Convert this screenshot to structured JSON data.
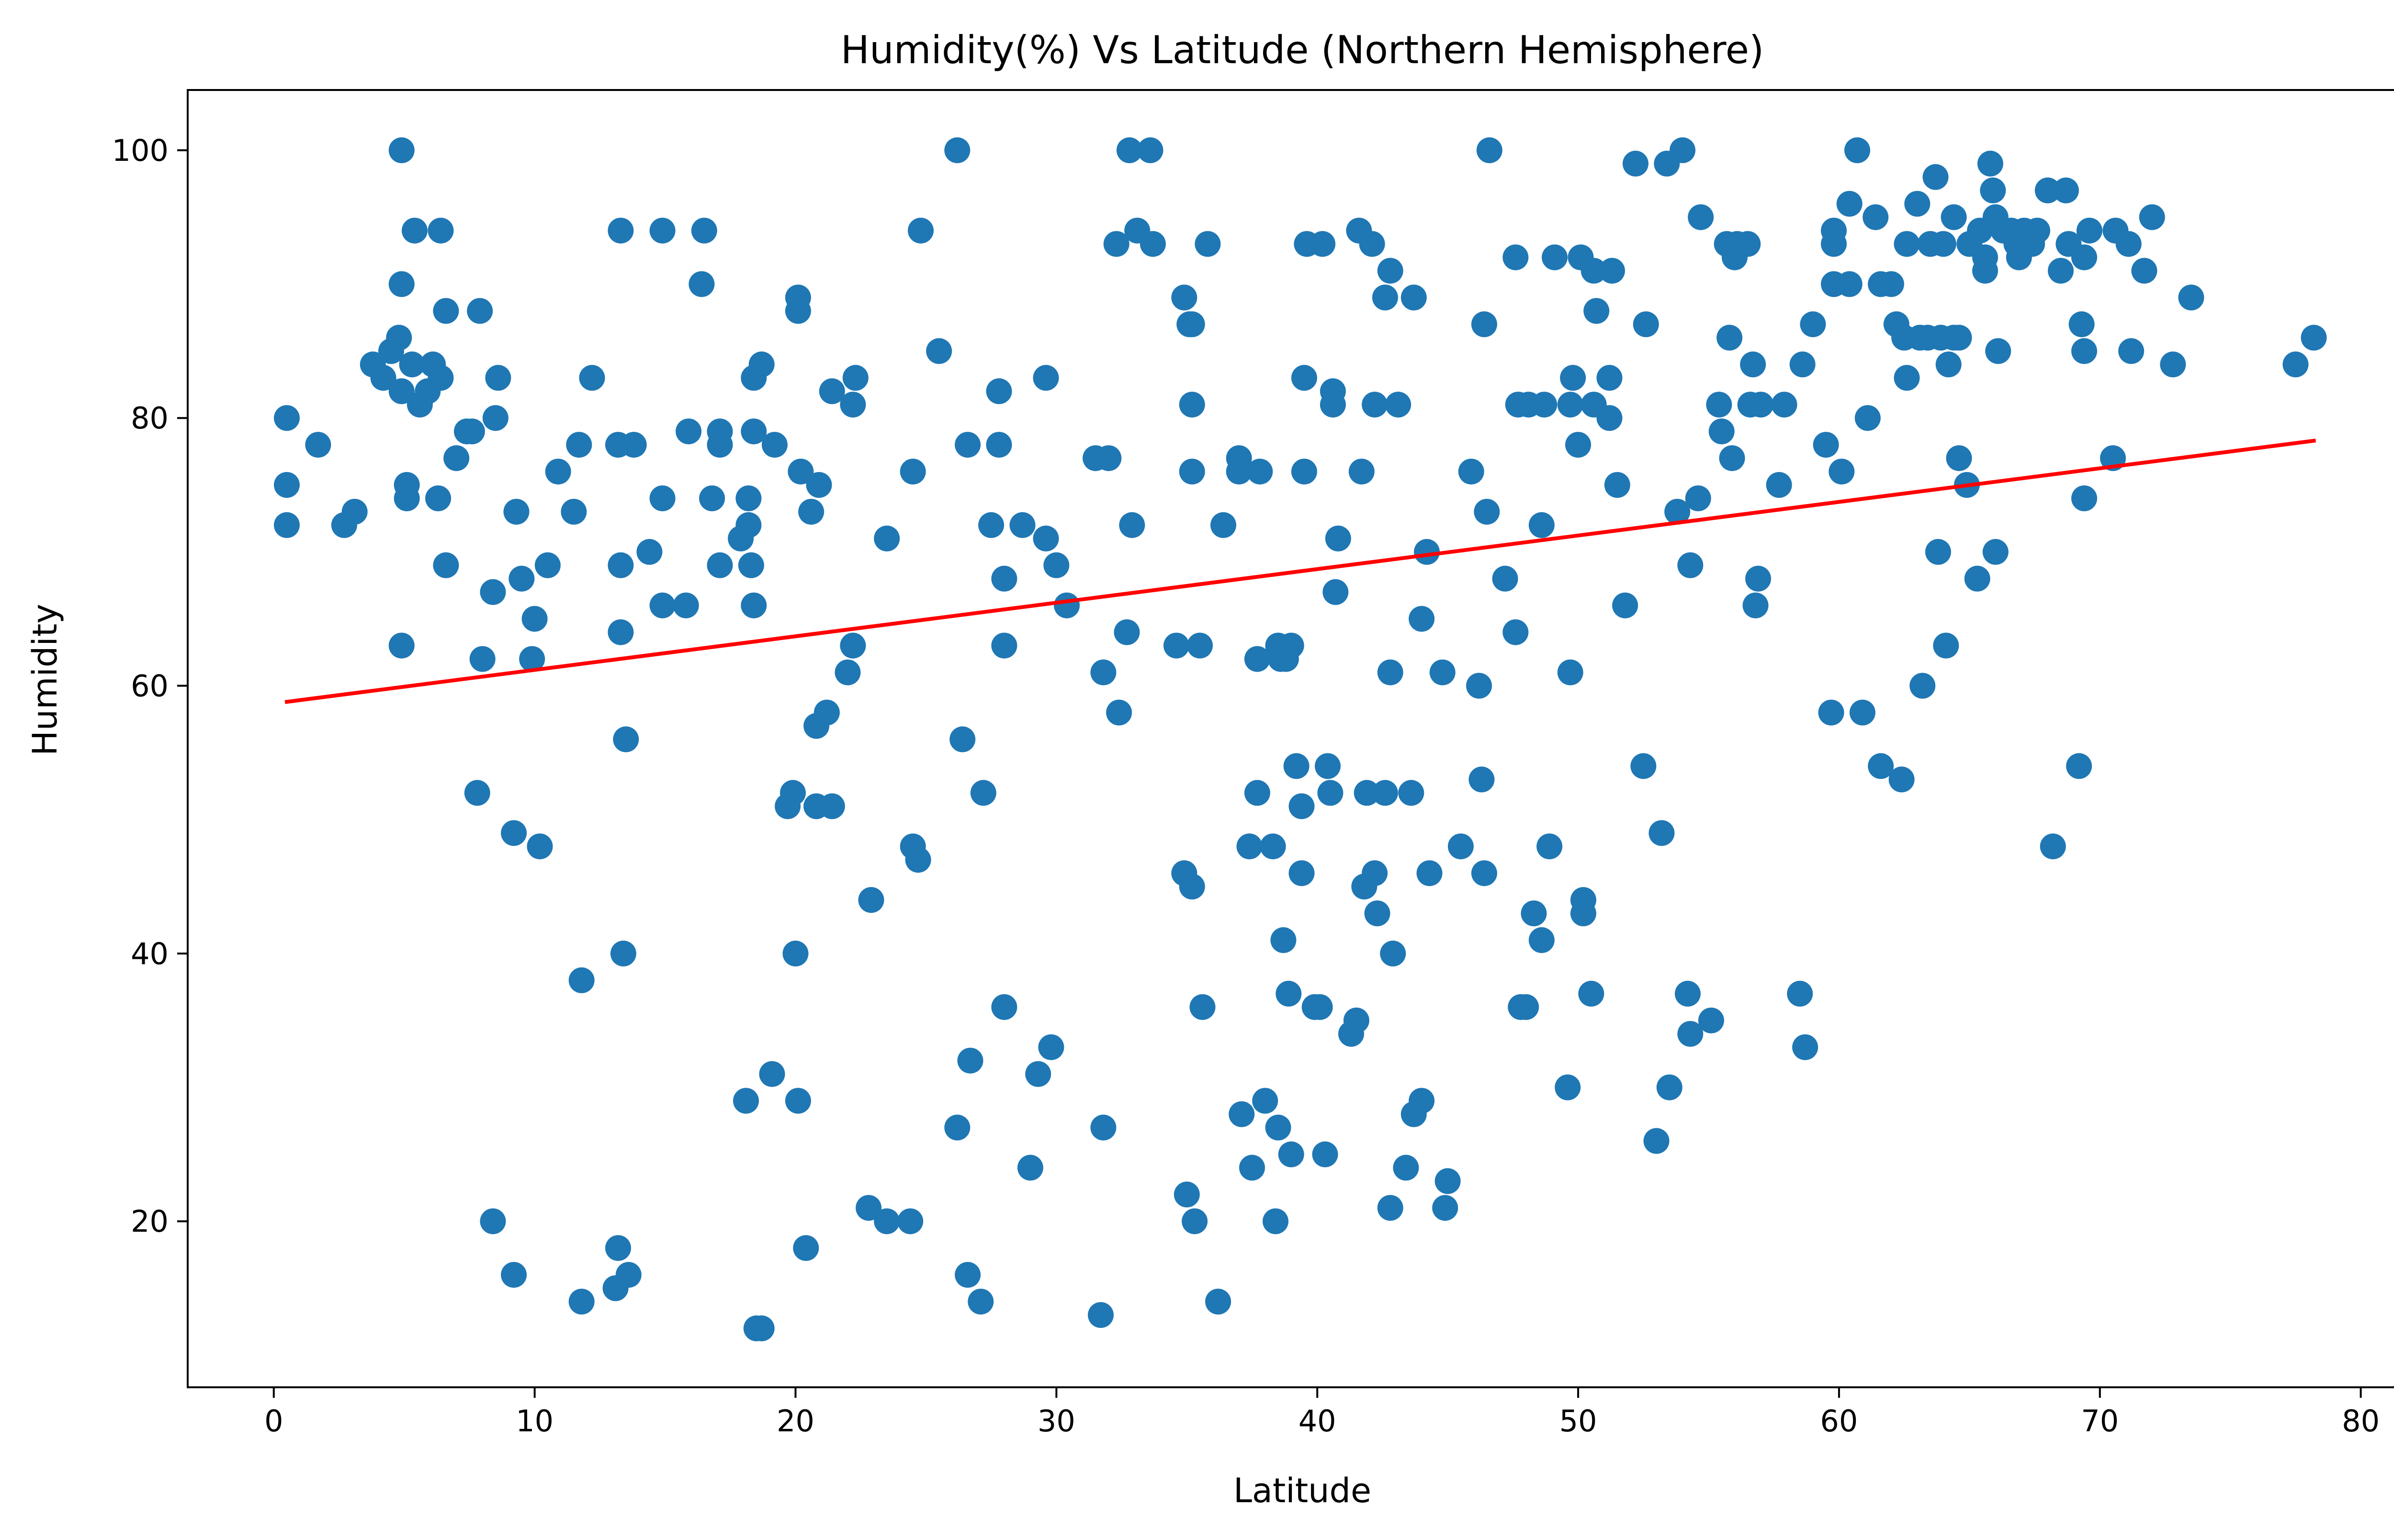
{
  "chart_data": {
    "type": "scatter",
    "title": "Humidity(%) Vs Latitude (Northern Hemisphere)",
    "xlabel": "Latitude",
    "ylabel": "Humidity",
    "xlim": [
      -3.3,
      82.1
    ],
    "ylim": [
      7.6,
      104.5
    ],
    "xticks": [
      0,
      10,
      20,
      30,
      40,
      50,
      60,
      70,
      80
    ],
    "yticks": [
      20,
      40,
      60,
      80,
      100
    ],
    "grid": false,
    "legend": "none",
    "colors": {
      "points": "#1f77b4",
      "regression": "#ff0000"
    },
    "regression_line": {
      "x": [
        0.5,
        78.2
      ],
      "y": [
        58.8,
        78.3
      ]
    },
    "points": [
      [
        0.5,
        72
      ],
      [
        0.5,
        75
      ],
      [
        0.5,
        80
      ],
      [
        1.7,
        78
      ],
      [
        2.7,
        72
      ],
      [
        3.1,
        73
      ],
      [
        3.8,
        84
      ],
      [
        4.2,
        83
      ],
      [
        4.5,
        85
      ],
      [
        4.8,
        86
      ],
      [
        4.9,
        82
      ],
      [
        4.9,
        90
      ],
      [
        4.9,
        100
      ],
      [
        4.9,
        63
      ],
      [
        5.1,
        74
      ],
      [
        5.1,
        75
      ],
      [
        5.3,
        84
      ],
      [
        5.4,
        94
      ],
      [
        5.6,
        81
      ],
      [
        5.9,
        82
      ],
      [
        6.1,
        84
      ],
      [
        6.3,
        74
      ],
      [
        6.4,
        83
      ],
      [
        6.4,
        94
      ],
      [
        6.6,
        69
      ],
      [
        6.6,
        88
      ],
      [
        7.0,
        77
      ],
      [
        7.4,
        79
      ],
      [
        7.6,
        79
      ],
      [
        7.8,
        52
      ],
      [
        7.9,
        88
      ],
      [
        8.0,
        62
      ],
      [
        8.4,
        67
      ],
      [
        8.4,
        20
      ],
      [
        8.5,
        80
      ],
      [
        8.6,
        83
      ],
      [
        9.2,
        49
      ],
      [
        9.2,
        16
      ],
      [
        9.3,
        73
      ],
      [
        9.5,
        68
      ],
      [
        9.9,
        62
      ],
      [
        10.0,
        65
      ],
      [
        10.2,
        48
      ],
      [
        10.5,
        69
      ],
      [
        10.9,
        76
      ],
      [
        11.5,
        73
      ],
      [
        11.7,
        78
      ],
      [
        11.8,
        38
      ],
      [
        11.8,
        14
      ],
      [
        12.2,
        83
      ],
      [
        13.1,
        15
      ],
      [
        13.2,
        78
      ],
      [
        13.2,
        18
      ],
      [
        13.3,
        94
      ],
      [
        13.3,
        69
      ],
      [
        13.3,
        64
      ],
      [
        13.4,
        40
      ],
      [
        13.5,
        56
      ],
      [
        13.6,
        16
      ],
      [
        13.8,
        78
      ],
      [
        14.4,
        70
      ],
      [
        14.9,
        94
      ],
      [
        14.9,
        74
      ],
      [
        14.9,
        66
      ],
      [
        15.8,
        66
      ],
      [
        15.9,
        79
      ],
      [
        16.4,
        90
      ],
      [
        16.5,
        94
      ],
      [
        16.8,
        74
      ],
      [
        17.1,
        69
      ],
      [
        17.1,
        78
      ],
      [
        17.1,
        79
      ],
      [
        17.9,
        71
      ],
      [
        18.1,
        29
      ],
      [
        18.2,
        74
      ],
      [
        18.2,
        72
      ],
      [
        18.3,
        69
      ],
      [
        18.4,
        66
      ],
      [
        18.4,
        79
      ],
      [
        18.4,
        83
      ],
      [
        18.5,
        12
      ],
      [
        18.7,
        12
      ],
      [
        18.7,
        84
      ],
      [
        19.1,
        31
      ],
      [
        19.2,
        78
      ],
      [
        19.7,
        51
      ],
      [
        19.9,
        52
      ],
      [
        20.0,
        40
      ],
      [
        20.1,
        29
      ],
      [
        20.1,
        88
      ],
      [
        20.1,
        89
      ],
      [
        20.2,
        76
      ],
      [
        20.4,
        18
      ],
      [
        20.6,
        73
      ],
      [
        20.8,
        51
      ],
      [
        20.8,
        57
      ],
      [
        20.9,
        75
      ],
      [
        21.2,
        58
      ],
      [
        21.4,
        51
      ],
      [
        21.4,
        82
      ],
      [
        22.0,
        61
      ],
      [
        22.2,
        81
      ],
      [
        22.2,
        63
      ],
      [
        22.3,
        83
      ],
      [
        22.8,
        21
      ],
      [
        22.9,
        44
      ],
      [
        23.5,
        71
      ],
      [
        23.5,
        20
      ],
      [
        24.4,
        20
      ],
      [
        24.5,
        76
      ],
      [
        24.5,
        48
      ],
      [
        24.7,
        47
      ],
      [
        24.8,
        94
      ],
      [
        25.5,
        85
      ],
      [
        26.2,
        100
      ],
      [
        26.2,
        27
      ],
      [
        26.4,
        56
      ],
      [
        26.6,
        16
      ],
      [
        26.6,
        78
      ],
      [
        26.7,
        32
      ],
      [
        27.1,
        14
      ],
      [
        27.2,
        52
      ],
      [
        27.5,
        72
      ],
      [
        27.8,
        82
      ],
      [
        27.8,
        78
      ],
      [
        28.0,
        36
      ],
      [
        28.0,
        63
      ],
      [
        28.0,
        68
      ],
      [
        28.7,
        72
      ],
      [
        29.0,
        24
      ],
      [
        29.3,
        31
      ],
      [
        29.6,
        71
      ],
      [
        29.6,
        83
      ],
      [
        29.8,
        33
      ],
      [
        30.0,
        69
      ],
      [
        30.4,
        66
      ],
      [
        31.5,
        77
      ],
      [
        31.7,
        13
      ],
      [
        31.8,
        61
      ],
      [
        31.8,
        27
      ],
      [
        32.0,
        77
      ],
      [
        32.3,
        93
      ],
      [
        32.4,
        58
      ],
      [
        32.7,
        64
      ],
      [
        32.8,
        100
      ],
      [
        32.9,
        72
      ],
      [
        33.1,
        94
      ],
      [
        33.6,
        100
      ],
      [
        33.7,
        93
      ],
      [
        34.6,
        63
      ],
      [
        34.9,
        89
      ],
      [
        34.9,
        46
      ],
      [
        35.0,
        22
      ],
      [
        35.1,
        87
      ],
      [
        35.2,
        87
      ],
      [
        35.2,
        76
      ],
      [
        35.2,
        45
      ],
      [
        35.2,
        81
      ],
      [
        35.3,
        20
      ],
      [
        35.5,
        63
      ],
      [
        35.6,
        36
      ],
      [
        35.8,
        93
      ],
      [
        36.2,
        14
      ],
      [
        36.4,
        72
      ],
      [
        37.0,
        77
      ],
      [
        37.0,
        76
      ],
      [
        37.1,
        28
      ],
      [
        37.4,
        48
      ],
      [
        37.5,
        24
      ],
      [
        37.7,
        62
      ],
      [
        37.7,
        52
      ],
      [
        37.8,
        76
      ],
      [
        38.0,
        29
      ],
      [
        38.3,
        48
      ],
      [
        38.4,
        20
      ],
      [
        38.5,
        27
      ],
      [
        38.5,
        63
      ],
      [
        38.6,
        62
      ],
      [
        38.7,
        41
      ],
      [
        38.8,
        62
      ],
      [
        38.9,
        37
      ],
      [
        39.0,
        63
      ],
      [
        39.0,
        25
      ],
      [
        39.2,
        54
      ],
      [
        39.4,
        46
      ],
      [
        39.4,
        51
      ],
      [
        39.5,
        83
      ],
      [
        39.5,
        76
      ],
      [
        39.6,
        93
      ],
      [
        39.9,
        36
      ],
      [
        40.1,
        36
      ],
      [
        40.2,
        93
      ],
      [
        40.3,
        25
      ],
      [
        40.4,
        54
      ],
      [
        40.5,
        52
      ],
      [
        40.6,
        81
      ],
      [
        40.6,
        82
      ],
      [
        40.7,
        67
      ],
      [
        40.8,
        71
      ],
      [
        41.3,
        34
      ],
      [
        41.5,
        35
      ],
      [
        41.6,
        94
      ],
      [
        41.7,
        76
      ],
      [
        41.8,
        45
      ],
      [
        41.9,
        52
      ],
      [
        42.1,
        93
      ],
      [
        42.2,
        46
      ],
      [
        42.2,
        81
      ],
      [
        42.3,
        43
      ],
      [
        42.6,
        89
      ],
      [
        42.6,
        52
      ],
      [
        42.8,
        61
      ],
      [
        42.8,
        91
      ],
      [
        42.8,
        21
      ],
      [
        42.9,
        40
      ],
      [
        43.1,
        81
      ],
      [
        43.4,
        24
      ],
      [
        43.6,
        52
      ],
      [
        43.7,
        89
      ],
      [
        43.7,
        28
      ],
      [
        44.0,
        29
      ],
      [
        44.0,
        65
      ],
      [
        44.2,
        70
      ],
      [
        44.3,
        46
      ],
      [
        44.8,
        61
      ],
      [
        44.9,
        21
      ],
      [
        45.0,
        23
      ],
      [
        45.5,
        48
      ],
      [
        45.9,
        76
      ],
      [
        46.2,
        60
      ],
      [
        46.3,
        53
      ],
      [
        46.4,
        87
      ],
      [
        46.4,
        46
      ],
      [
        46.5,
        73
      ],
      [
        46.6,
        100
      ],
      [
        47.2,
        68
      ],
      [
        47.6,
        64
      ],
      [
        47.6,
        92
      ],
      [
        47.7,
        81
      ],
      [
        47.8,
        36
      ],
      [
        48.0,
        36
      ],
      [
        48.1,
        81
      ],
      [
        48.3,
        43
      ],
      [
        48.6,
        72
      ],
      [
        48.6,
        41
      ],
      [
        48.7,
        81
      ],
      [
        48.9,
        48
      ],
      [
        49.1,
        92
      ],
      [
        49.6,
        30
      ],
      [
        49.7,
        61
      ],
      [
        49.7,
        81
      ],
      [
        49.8,
        83
      ],
      [
        50.0,
        78
      ],
      [
        50.1,
        92
      ],
      [
        50.2,
        43
      ],
      [
        50.2,
        44
      ],
      [
        50.5,
        37
      ],
      [
        50.6,
        91
      ],
      [
        50.6,
        81
      ],
      [
        50.7,
        88
      ],
      [
        51.2,
        80
      ],
      [
        51.2,
        83
      ],
      [
        51.3,
        91
      ],
      [
        51.5,
        75
      ],
      [
        51.8,
        66
      ],
      [
        52.2,
        99
      ],
      [
        52.5,
        54
      ],
      [
        52.6,
        87
      ],
      [
        53.0,
        26
      ],
      [
        53.2,
        49
      ],
      [
        53.4,
        99
      ],
      [
        53.5,
        30
      ],
      [
        53.8,
        73
      ],
      [
        54.0,
        100
      ],
      [
        54.2,
        37
      ],
      [
        54.3,
        34
      ],
      [
        54.3,
        69
      ],
      [
        54.6,
        74
      ],
      [
        54.7,
        95
      ],
      [
        55.1,
        35
      ],
      [
        55.4,
        81
      ],
      [
        55.5,
        79
      ],
      [
        55.7,
        93
      ],
      [
        55.8,
        86
      ],
      [
        55.9,
        77
      ],
      [
        56.0,
        92
      ],
      [
        56.1,
        93
      ],
      [
        56.5,
        93
      ],
      [
        56.6,
        81
      ],
      [
        56.7,
        84
      ],
      [
        56.8,
        66
      ],
      [
        56.9,
        68
      ],
      [
        57.0,
        81
      ],
      [
        57.7,
        75
      ],
      [
        57.9,
        81
      ],
      [
        58.5,
        37
      ],
      [
        58.6,
        84
      ],
      [
        58.7,
        33
      ],
      [
        59.0,
        87
      ],
      [
        59.5,
        78
      ],
      [
        59.7,
        58
      ],
      [
        59.8,
        90
      ],
      [
        59.8,
        93
      ],
      [
        59.8,
        94
      ],
      [
        60.1,
        76
      ],
      [
        60.4,
        90
      ],
      [
        60.4,
        96
      ],
      [
        60.7,
        100
      ],
      [
        60.9,
        58
      ],
      [
        61.1,
        80
      ],
      [
        61.4,
        95
      ],
      [
        61.6,
        54
      ],
      [
        61.6,
        90
      ],
      [
        62.0,
        90
      ],
      [
        62.2,
        87
      ],
      [
        62.4,
        53
      ],
      [
        62.5,
        86
      ],
      [
        62.6,
        83
      ],
      [
        62.6,
        93
      ],
      [
        63.0,
        96
      ],
      [
        63.1,
        86
      ],
      [
        63.2,
        60
      ],
      [
        63.4,
        86
      ],
      [
        63.5,
        93
      ],
      [
        63.7,
        98
      ],
      [
        63.8,
        70
      ],
      [
        63.9,
        86
      ],
      [
        64.0,
        93
      ],
      [
        64.1,
        63
      ],
      [
        64.2,
        84
      ],
      [
        64.4,
        86
      ],
      [
        64.4,
        95
      ],
      [
        64.6,
        86
      ],
      [
        64.6,
        77
      ],
      [
        64.9,
        75
      ],
      [
        65.0,
        93
      ],
      [
        65.3,
        68
      ],
      [
        65.4,
        94
      ],
      [
        65.6,
        91
      ],
      [
        65.6,
        92
      ],
      [
        65.8,
        99
      ],
      [
        65.9,
        97
      ],
      [
        66.0,
        95
      ],
      [
        66.0,
        70
      ],
      [
        66.1,
        85
      ],
      [
        66.3,
        94
      ],
      [
        66.6,
        94
      ],
      [
        66.8,
        93
      ],
      [
        66.9,
        92
      ],
      [
        67.1,
        94
      ],
      [
        67.4,
        93
      ],
      [
        67.6,
        94
      ],
      [
        68.0,
        97
      ],
      [
        68.2,
        48
      ],
      [
        68.5,
        91
      ],
      [
        68.7,
        97
      ],
      [
        68.8,
        93
      ],
      [
        69.2,
        54
      ],
      [
        69.3,
        87
      ],
      [
        69.4,
        92
      ],
      [
        69.4,
        85
      ],
      [
        69.4,
        74
      ],
      [
        69.6,
        94
      ],
      [
        70.5,
        77
      ],
      [
        70.6,
        94
      ],
      [
        71.1,
        93
      ],
      [
        71.2,
        85
      ],
      [
        71.7,
        91
      ],
      [
        72.0,
        95
      ],
      [
        72.8,
        84
      ],
      [
        73.5,
        89
      ],
      [
        77.5,
        84
      ],
      [
        78.2,
        86
      ]
    ]
  }
}
